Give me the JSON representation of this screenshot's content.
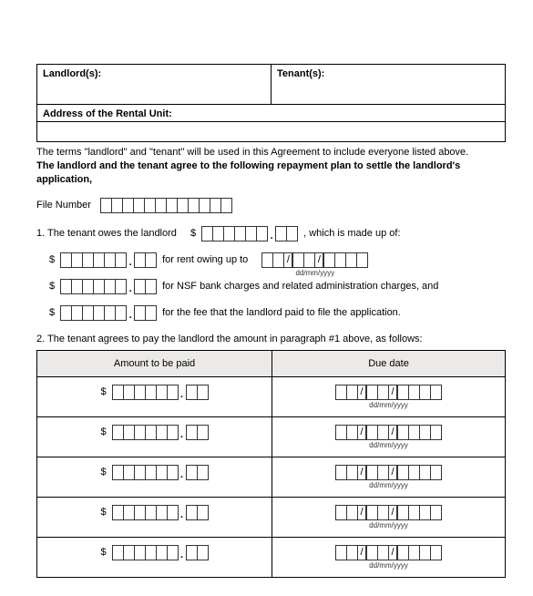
{
  "header": {
    "landlords_label": "Landlord(s):",
    "tenants_label": "Tenant(s):",
    "address_label": "Address of the Rental Unit:"
  },
  "intro": {
    "line1": "The terms \"landlord\" and \"tenant\" will be used in this Agreement to include everyone listed above.",
    "line2a": "The landlord and the tenant agree to the following repayment plan to settle the landlord's",
    "line2b": "application,"
  },
  "file": {
    "label": "File Number",
    "box_count": 12
  },
  "item1": {
    "prefix": "1. The tenant owes the landlord",
    "dollar": "$",
    "amount_int_boxes": 6,
    "amount_dec_boxes": 2,
    "suffix": ", which is made up of:"
  },
  "sublines": [
    {
      "dollar": "$",
      "int": 6,
      "dec": 2,
      "text": "for rent owing up to",
      "has_date": true
    },
    {
      "dollar": "$",
      "int": 6,
      "dec": 2,
      "text": "for NSF bank charges and related administration charges, and",
      "has_date": false
    },
    {
      "dollar": "$",
      "int": 6,
      "dec": 2,
      "text": "for the fee that the landlord paid to file the application.",
      "has_date": false
    }
  ],
  "date": {
    "dd": 2,
    "mm": 2,
    "yyyy": 4,
    "caption": "dd/mm/yyyy"
  },
  "item2": {
    "text": "2. The tenant agrees to pay the landlord the amount in paragraph #1 above, as follows:"
  },
  "pay_table": {
    "col1": "Amount to be paid",
    "col2": "Due date",
    "rows": 5,
    "dollar": "$",
    "amount_int_boxes": 6,
    "amount_dec_boxes": 2
  }
}
